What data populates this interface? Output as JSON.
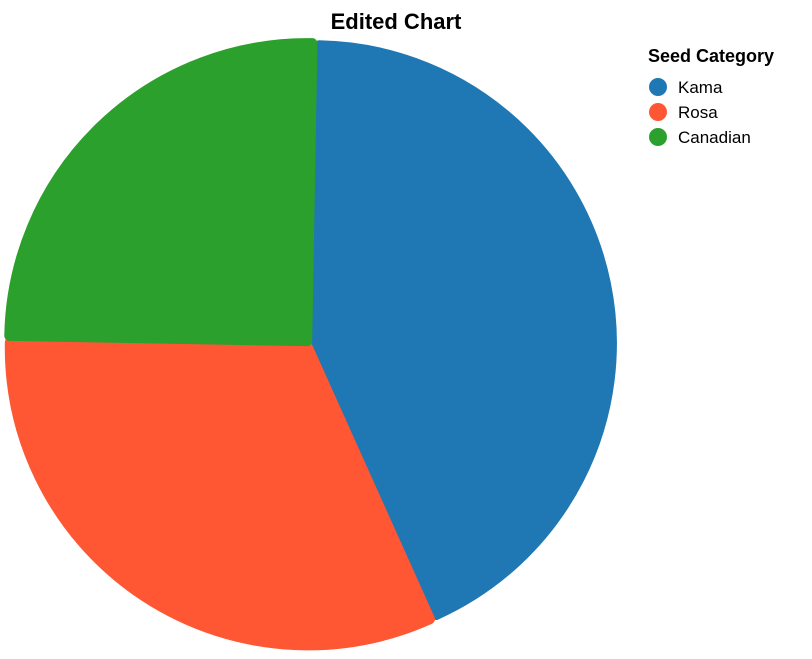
{
  "chart_data": {
    "type": "pie",
    "title": "Edited Chart",
    "legend_title": "Seed Category",
    "legend_position": "top-right",
    "categories": [
      "Kama",
      "Rosa",
      "Canadian"
    ],
    "values": [
      43,
      32,
      25
    ],
    "colors": [
      "#1f77b4",
      "#ff5733",
      "#2ca02c"
    ],
    "start_angle_deg": 1,
    "exploded": true
  }
}
